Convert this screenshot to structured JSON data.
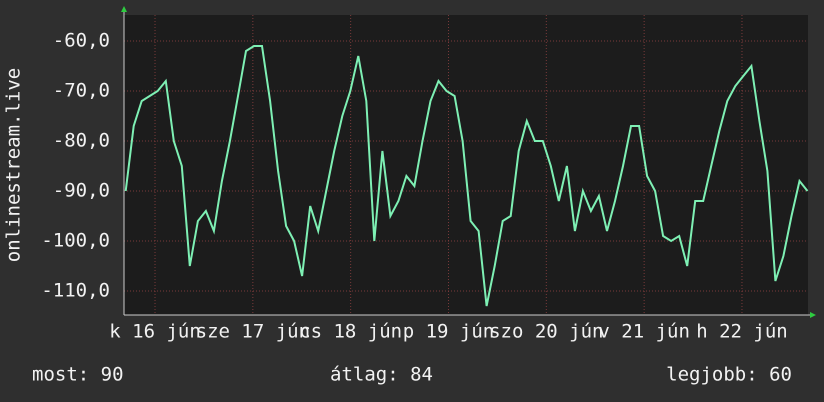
{
  "chart_data": {
    "type": "line",
    "ylabel": "onlinestream.live",
    "x": [
      15.7,
      15.782,
      15.864,
      15.946,
      16.028,
      16.11,
      16.192,
      16.274,
      16.356,
      16.438,
      16.52,
      16.602,
      16.684,
      16.766,
      16.848,
      16.93,
      17.012,
      17.094,
      17.176,
      17.258,
      17.34,
      17.422,
      17.504,
      17.586,
      17.668,
      17.75,
      17.832,
      17.914,
      17.996,
      18.078,
      18.16,
      18.242,
      18.324,
      18.406,
      18.488,
      18.57,
      18.652,
      18.734,
      18.816,
      18.898,
      18.98,
      19.062,
      19.144,
      19.226,
      19.308,
      19.39,
      19.472,
      19.554,
      19.636,
      19.718,
      19.8,
      19.882,
      19.964,
      20.046,
      20.128,
      20.21,
      20.292,
      20.374,
      20.456,
      20.538,
      20.62,
      20.702,
      20.784,
      20.866,
      20.948,
      21.03,
      21.112,
      21.194,
      21.276,
      21.358,
      21.44,
      21.522,
      21.604,
      21.686,
      21.768,
      21.85,
      21.932,
      22.014,
      22.096,
      22.178,
      22.26,
      22.342,
      22.424,
      22.506,
      22.588,
      22.67
    ],
    "series": [
      {
        "color": "#7ef0b4",
        "values": [
          -90,
          -77,
          -72,
          -71,
          -70,
          -68,
          -80,
          -85,
          -105,
          -96,
          -94,
          -98,
          -88,
          -80,
          -71,
          -62,
          -61,
          -61,
          -72,
          -86,
          -97,
          -100,
          -107,
          -93,
          -98,
          -90,
          -82,
          -75,
          -70,
          -63,
          -72,
          -100,
          -82,
          -95,
          -92,
          -87,
          -89,
          -80,
          -72,
          -68,
          -70,
          -71,
          -80,
          -96,
          -98,
          -113,
          -105,
          -96,
          -95,
          -82,
          -76,
          -80,
          -80,
          -85,
          -92,
          -85,
          -98,
          -90,
          -94,
          -91,
          -98,
          -92,
          -85,
          -77,
          -77,
          -87,
          -90,
          -99,
          -100,
          -99,
          -105,
          -92,
          -92,
          -85,
          -78,
          -72,
          -69,
          -67,
          -65,
          -76,
          -86,
          -108,
          -103,
          -95,
          -88,
          -90
        ]
      }
    ],
    "xlim": [
      15.683,
      22.675
    ],
    "xticks": [
      {
        "value": 16,
        "label": "k 16 jún"
      },
      {
        "value": 17,
        "label": "sze 17 jún"
      },
      {
        "value": 18,
        "label": "cs 18 jún"
      },
      {
        "value": 19,
        "label": "p 19 jún"
      },
      {
        "value": 20,
        "label": "szo 20 jún"
      },
      {
        "value": 21,
        "label": "v 21 jún"
      },
      {
        "value": 22,
        "label": "h 22 jún"
      }
    ],
    "ylim": [
      -114.8,
      -54.8
    ],
    "yticks": [
      {
        "value": -60,
        "label": "-60,0"
      },
      {
        "value": -70,
        "label": "-70,0"
      },
      {
        "value": -80,
        "label": "-80,0"
      },
      {
        "value": -90,
        "label": "-90,0"
      },
      {
        "value": -100,
        "label": "-100,0"
      },
      {
        "value": -110,
        "label": "-110,0"
      }
    ],
    "grid": true,
    "footer": [
      "most: 90",
      "átlag: 84",
      "legjobb: 60"
    ]
  }
}
